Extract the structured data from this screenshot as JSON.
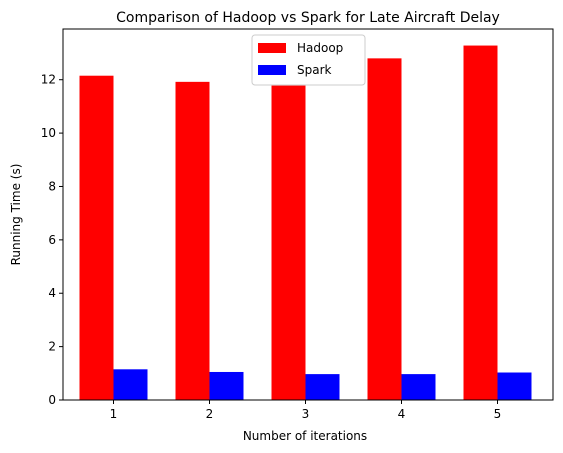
{
  "chart_data": {
    "type": "bar",
    "title": "Comparison of Hadoop vs Spark for Late Aircraft Delay",
    "xlabel": "Number of iterations",
    "ylabel": "Running Time (s)",
    "categories": [
      "1",
      "2",
      "3",
      "4",
      "5"
    ],
    "ylim": [
      0,
      13.9
    ],
    "yticks": [
      0,
      2,
      4,
      6,
      8,
      10,
      12
    ],
    "grid": false,
    "legend_position": "top-center",
    "series": [
      {
        "name": "Hadoop",
        "color": "#ff0000",
        "values": [
          12.15,
          11.92,
          11.78,
          12.8,
          13.28
        ]
      },
      {
        "name": "Spark",
        "color": "#0000ff",
        "values": [
          1.15,
          1.05,
          0.97,
          0.97,
          1.03
        ]
      }
    ]
  }
}
